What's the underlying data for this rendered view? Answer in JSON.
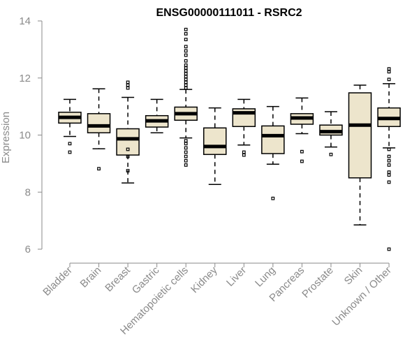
{
  "chart_data": {
    "type": "boxplot",
    "title": "ENSG00000111011 - RSRC2",
    "ylabel": "Expression",
    "xlabel": "",
    "ylim": [
      6,
      14
    ],
    "yticks": [
      6,
      8,
      10,
      12,
      14
    ],
    "box_fill": "#ede5cc",
    "categories": [
      "Bladder",
      "Brain",
      "Breast",
      "Gastric",
      "Hematopoietic cells",
      "Kidney",
      "Liver",
      "Lung",
      "Pancreas",
      "Prostate",
      "Skin",
      "Unknown / Other"
    ],
    "boxes": [
      {
        "name": "Bladder",
        "whislo": 9.95,
        "q1": 10.42,
        "med": 10.62,
        "q3": 10.8,
        "whishi": 11.25,
        "fliers": [
          9.7,
          9.4
        ]
      },
      {
        "name": "Brain",
        "whislo": 9.52,
        "q1": 10.08,
        "med": 10.32,
        "q3": 10.75,
        "whishi": 11.62,
        "fliers": [
          8.82
        ]
      },
      {
        "name": "Breast",
        "whislo": 8.32,
        "q1": 9.3,
        "med": 9.87,
        "q3": 10.22,
        "whishi": 11.32,
        "fliers": [
          11.65,
          11.75,
          11.85,
          9.5,
          9.25,
          8.75
        ]
      },
      {
        "name": "Gastric",
        "whislo": 10.08,
        "q1": 10.28,
        "med": 10.5,
        "q3": 10.68,
        "whishi": 11.25,
        "fliers": []
      },
      {
        "name": "Hematopoietic cells",
        "whislo": 9.9,
        "q1": 10.52,
        "med": 10.75,
        "q3": 10.98,
        "whishi": 11.6,
        "fliers": [
          13.7,
          13.55,
          13.35,
          13.1,
          12.95,
          12.8,
          12.6,
          12.45,
          12.35,
          12.25,
          12.15,
          12.05,
          11.95,
          11.85,
          11.75,
          11.65,
          9.8,
          9.7,
          9.55,
          9.4,
          9.25,
          9.1,
          8.95
        ]
      },
      {
        "name": "Kidney",
        "whislo": 8.27,
        "q1": 9.32,
        "med": 9.6,
        "q3": 10.25,
        "whishi": 10.95,
        "fliers": []
      },
      {
        "name": "Liver",
        "whislo": 9.65,
        "q1": 10.3,
        "med": 10.78,
        "q3": 10.92,
        "whishi": 11.25,
        "fliers": [
          9.4,
          9.3
        ]
      },
      {
        "name": "Lung",
        "whislo": 8.98,
        "q1": 9.35,
        "med": 9.98,
        "q3": 10.32,
        "whishi": 11.0,
        "fliers": [
          7.78
        ]
      },
      {
        "name": "Pancreas",
        "whislo": 10.05,
        "q1": 10.38,
        "med": 10.6,
        "q3": 10.75,
        "whishi": 11.3,
        "fliers": [
          9.42,
          9.08
        ]
      },
      {
        "name": "Prostate",
        "whislo": 9.58,
        "q1": 10.0,
        "med": 10.12,
        "q3": 10.35,
        "whishi": 10.82,
        "fliers": [
          9.32
        ]
      },
      {
        "name": "Skin",
        "whislo": 6.85,
        "q1": 8.5,
        "med": 10.35,
        "q3": 11.48,
        "whishi": 11.75,
        "fliers": []
      },
      {
        "name": "Unknown / Other",
        "whislo": 9.55,
        "q1": 10.3,
        "med": 10.58,
        "q3": 10.95,
        "whishi": 11.8,
        "fliers": [
          12.32,
          12.22,
          11.95,
          9.5,
          9.25,
          9.1,
          8.95,
          8.7,
          8.6,
          8.35,
          6.0
        ]
      }
    ]
  }
}
